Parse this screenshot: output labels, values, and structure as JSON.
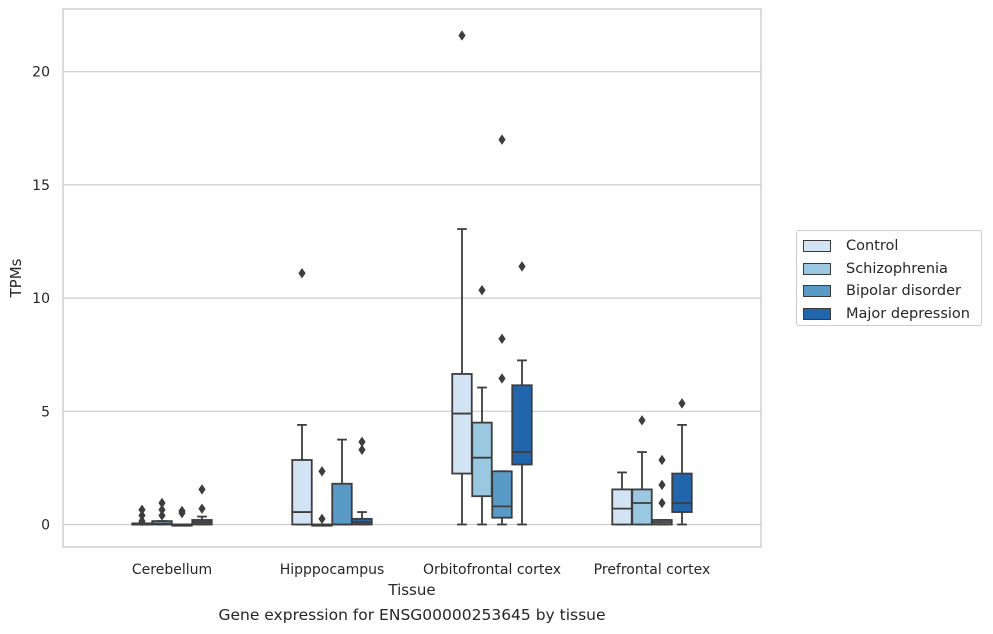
{
  "caption": "Gene expression for ENSG00000253645 by tissue",
  "chart_data": {
    "type": "box",
    "title": "",
    "xlabel": "Tissue",
    "ylabel": "TPMs",
    "ylim": [
      -1,
      22.6
    ],
    "yticks": [
      0,
      5,
      10,
      15,
      20
    ],
    "grid": "horizontal",
    "legend_position": "right",
    "categories": [
      "Cerebellum",
      "Hipppocampus",
      "Orbitofrontal cortex",
      "Prefrontal cortex"
    ],
    "series": [
      {
        "name": "Control",
        "color": "#d2e3f3",
        "boxes": [
          {
            "whislo": 0,
            "q1": 0,
            "med": 0,
            "q3": 0.05,
            "whishi": 0.05,
            "fliers": [
              0.15,
              0.4,
              0.65
            ]
          },
          {
            "whislo": 0,
            "q1": 0,
            "med": 0.55,
            "q3": 2.85,
            "whishi": 4.4,
            "fliers": [
              11.1
            ]
          },
          {
            "whislo": 0,
            "q1": 2.25,
            "med": 4.9,
            "q3": 6.65,
            "whishi": 13.05,
            "fliers": [
              21.6
            ]
          },
          {
            "whislo": 0,
            "q1": 0,
            "med": 0.7,
            "q3": 1.55,
            "whishi": 2.3,
            "fliers": []
          }
        ]
      },
      {
        "name": "Schizophrenia",
        "color": "#9ac8e0",
        "boxes": [
          {
            "whislo": 0,
            "q1": 0,
            "med": 0.05,
            "q3": 0.15,
            "whishi": 0.15,
            "fliers": [
              0.4,
              0.65,
              0.95
            ]
          },
          {
            "whislo": 0,
            "q1": 0,
            "med": 0,
            "q3": 0,
            "whishi": 0,
            "fliers": [
              0.25,
              2.35
            ]
          },
          {
            "whislo": 0,
            "q1": 1.25,
            "med": 2.95,
            "q3": 4.5,
            "whishi": 6.05,
            "fliers": [
              10.35
            ]
          },
          {
            "whislo": 0,
            "q1": 0,
            "med": 0.95,
            "q3": 1.55,
            "whishi": 3.2,
            "fliers": [
              4.6
            ]
          }
        ]
      },
      {
        "name": "Bipolar disorder",
        "color": "#5a9ac6",
        "boxes": [
          {
            "whislo": 0,
            "q1": 0,
            "med": 0,
            "q3": 0,
            "whishi": 0,
            "fliers": [
              0.5,
              0.6
            ]
          },
          {
            "whislo": 0,
            "q1": 0,
            "med": 0,
            "q3": 1.8,
            "whishi": 3.75,
            "fliers": []
          },
          {
            "whislo": 0,
            "q1": 0.3,
            "med": 0.8,
            "q3": 2.35,
            "whishi": 2.35,
            "fliers": [
              6.45,
              8.2,
              17.0
            ]
          },
          {
            "whislo": 0,
            "q1": 0,
            "med": 0.1,
            "q3": 0.2,
            "whishi": 0.2,
            "fliers": [
              0.95,
              1.75,
              2.85
            ]
          }
        ]
      },
      {
        "name": "Major depression",
        "color": "#2166ac",
        "boxes": [
          {
            "whislo": 0,
            "q1": 0,
            "med": 0.1,
            "q3": 0.2,
            "whishi": 0.35,
            "fliers": [
              0.7,
              1.55
            ]
          },
          {
            "whislo": 0,
            "q1": 0,
            "med": 0.1,
            "q3": 0.25,
            "whishi": 0.55,
            "fliers": [
              3.3,
              3.65
            ]
          },
          {
            "whislo": 0,
            "q1": 2.65,
            "med": 3.2,
            "q3": 6.15,
            "whishi": 7.25,
            "fliers": [
              11.4
            ]
          },
          {
            "whislo": 0,
            "q1": 0.55,
            "med": 0.95,
            "q3": 2.25,
            "whishi": 4.4,
            "fliers": [
              5.35
            ]
          }
        ]
      }
    ]
  }
}
